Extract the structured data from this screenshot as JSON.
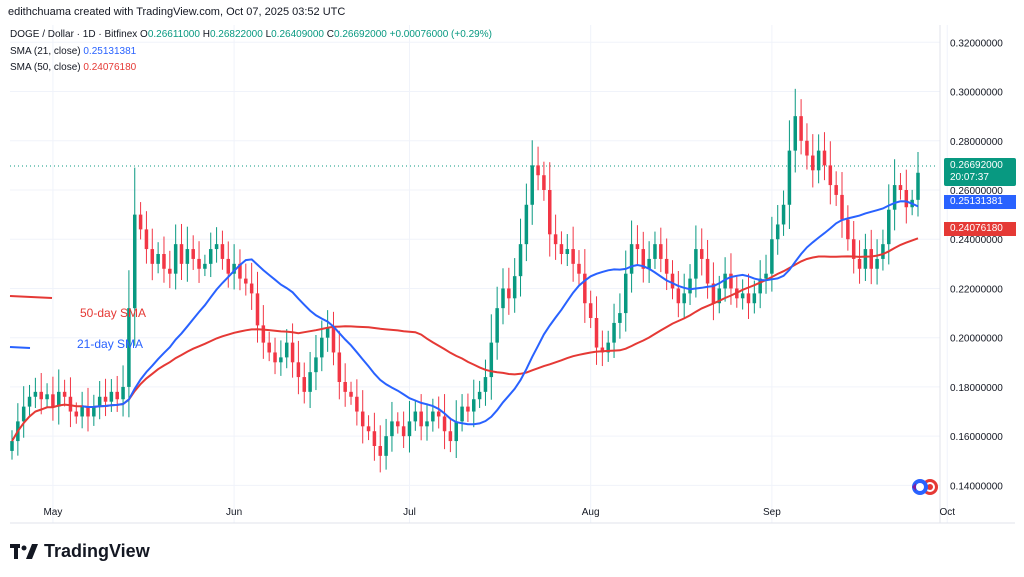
{
  "header": {
    "author_line": "edithchuama created with TradingView.com, Oct 07, 2025 03:52 UTC",
    "symbol": "DOGE / Dollar · 1D · Bitfinex",
    "o_label": "O",
    "o_value": "0.26611000",
    "h_label": "H",
    "h_value": "0.26822000",
    "l_label": "L",
    "l_value": "0.26409000",
    "c_label": "C",
    "c_value": "0.26692000",
    "change": "+0.00076000 (+0.29%)",
    "sma21_label": "SMA (21, close)",
    "sma21_value": "0.25131381",
    "sma50_label": "SMA (50, close)",
    "sma50_value": "0.24076180"
  },
  "price_badge": {
    "price": "0.26692000",
    "countdown": "20:07:37"
  },
  "annotations": {
    "sma50_text": "50-day SMA",
    "sma21_text": "21-day SMA"
  },
  "brand": {
    "name": "TradingView"
  },
  "colors": {
    "up": "#089981",
    "down": "#f23645",
    "sma21": "#2962ff",
    "sma50": "#e53935",
    "grid": "#f0f3fa"
  },
  "chart_data": {
    "type": "candlestick",
    "ylim": [
      0.13,
      0.325
    ],
    "yticks": [
      "0.32000000",
      "0.30000000",
      "0.28000000",
      "0.26000000",
      "0.24000000",
      "0.22000000",
      "0.20000000",
      "0.18000000",
      "0.16000000",
      "0.14000000"
    ],
    "xticks": [
      {
        "label": "May",
        "index": 7
      },
      {
        "label": "Jun",
        "index": 38
      },
      {
        "label": "Jul",
        "index": 68
      },
      {
        "label": "Aug",
        "index": 99
      },
      {
        "label": "Sep",
        "index": 130
      },
      {
        "label": "Oct",
        "index": 160
      }
    ],
    "series": [
      {
        "name": "SMA (21, close)",
        "last": 0.25131381
      },
      {
        "name": "SMA (50, close)",
        "last": 0.2407618
      }
    ],
    "closes": [
      0.158,
      0.166,
      0.172,
      0.176,
      0.178,
      0.175,
      0.177,
      0.172,
      0.178,
      0.176,
      0.17,
      0.168,
      0.172,
      0.168,
      0.172,
      0.176,
      0.174,
      0.178,
      0.175,
      0.18,
      0.212,
      0.25,
      0.244,
      0.236,
      0.23,
      0.234,
      0.228,
      0.226,
      0.238,
      0.23,
      0.236,
      0.232,
      0.228,
      0.23,
      0.236,
      0.238,
      0.232,
      0.226,
      0.23,
      0.224,
      0.222,
      0.218,
      0.205,
      0.198,
      0.194,
      0.19,
      0.192,
      0.198,
      0.19,
      0.184,
      0.178,
      0.186,
      0.192,
      0.2,
      0.204,
      0.194,
      0.182,
      0.178,
      0.176,
      0.17,
      0.164,
      0.162,
      0.156,
      0.152,
      0.16,
      0.166,
      0.164,
      0.16,
      0.166,
      0.17,
      0.164,
      0.166,
      0.17,
      0.168,
      0.162,
      0.158,
      0.166,
      0.172,
      0.17,
      0.175,
      0.178,
      0.184,
      0.198,
      0.212,
      0.22,
      0.216,
      0.225,
      0.238,
      0.254,
      0.27,
      0.266,
      0.26,
      0.242,
      0.238,
      0.234,
      0.236,
      0.23,
      0.226,
      0.214,
      0.208,
      0.196,
      0.194,
      0.198,
      0.206,
      0.21,
      0.226,
      0.238,
      0.236,
      0.228,
      0.232,
      0.238,
      0.232,
      0.226,
      0.22,
      0.214,
      0.218,
      0.224,
      0.236,
      0.232,
      0.222,
      0.214,
      0.22,
      0.226,
      0.22,
      0.216,
      0.218,
      0.214,
      0.218,
      0.224,
      0.226,
      0.24,
      0.246,
      0.254,
      0.276,
      0.29,
      0.28,
      0.274,
      0.268,
      0.276,
      0.27,
      0.262,
      0.258,
      0.248,
      0.24,
      0.232,
      0.228,
      0.236,
      0.228,
      0.232,
      0.238,
      0.252,
      0.262,
      0.26,
      0.253,
      0.256,
      0.267
    ]
  }
}
